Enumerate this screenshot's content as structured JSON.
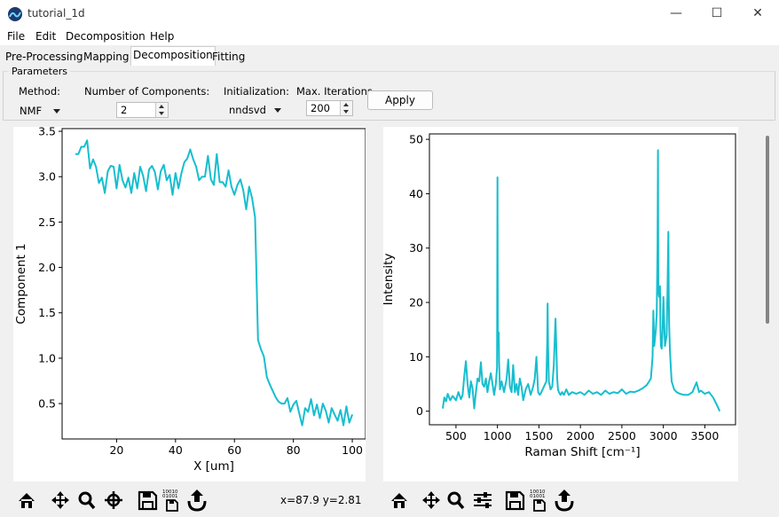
{
  "window": {
    "title": "tutorial_1d",
    "minimize_glyph": "—",
    "maximize_glyph": "☐",
    "close_glyph": "✕"
  },
  "menu": [
    "File",
    "Edit",
    "Decomposition",
    "Help"
  ],
  "tabs": [
    "Pre-Processing",
    "Mapping",
    "Decomposition",
    "Fitting"
  ],
  "active_tab": "Decomposition",
  "parameters": {
    "legend": "Parameters",
    "method_label": "Method:",
    "method_value": "NMF",
    "components_label": "Number of Components:",
    "components_value": "2",
    "init_label": "Initialization:",
    "init_value": "nndsvd",
    "iter_label": "Max. Iterations",
    "iter_value": "200",
    "apply_label": "Apply"
  },
  "colors": {
    "series": "#17becf"
  },
  "status": {
    "coords": "x=87.9 y=2.81"
  },
  "left_toolbar_icons": [
    "home-icon",
    "pan-icon",
    "zoom-icon",
    "crosshair-icon",
    "save-icon",
    "save-data-icon",
    "export-icon"
  ],
  "right_toolbar_icons": [
    "home-icon",
    "pan-icon",
    "zoom-icon",
    "sliders-icon",
    "save-icon",
    "save-data-icon",
    "export-icon"
  ],
  "chart_data": [
    {
      "type": "line",
      "xlabel": "X [um]",
      "ylabel": "Component 1",
      "xlim": [
        1.5,
        104.5
      ],
      "ylim": [
        0.11,
        3.53
      ],
      "xticks": [
        20,
        40,
        60,
        80,
        100
      ],
      "yticks": [
        0.5,
        1.0,
        1.5,
        2.0,
        2.5,
        3.0,
        3.5
      ],
      "ytick_labels": [
        "0.5",
        "1.0",
        "1.5",
        "2.0",
        "2.5",
        "3.0",
        "3.5"
      ],
      "series": [
        {
          "x": [
            6,
            7,
            8,
            9,
            10,
            11,
            12,
            13,
            14,
            15,
            16,
            17,
            18,
            19,
            20,
            21,
            22,
            23,
            24,
            25,
            26,
            27,
            28,
            29,
            30,
            31,
            32,
            33,
            34,
            35,
            36,
            37,
            38,
            39,
            40,
            41,
            42,
            43,
            44,
            45,
            46,
            47,
            48,
            49,
            50,
            51,
            52,
            53,
            54,
            55,
            56,
            57,
            58,
            59,
            60,
            61,
            62,
            63,
            64,
            65,
            66,
            67,
            68,
            69,
            70,
            71,
            72,
            73,
            74,
            75,
            76,
            77,
            78,
            79,
            80,
            81,
            82,
            83,
            84,
            85,
            86,
            87,
            88,
            89,
            90,
            91,
            92,
            93,
            94,
            95,
            96,
            97,
            98,
            99,
            100
          ],
          "y": [
            3.25,
            3.25,
            3.33,
            3.33,
            3.4,
            3.09,
            3.19,
            3.11,
            2.93,
            2.99,
            2.82,
            3.06,
            3.12,
            3.11,
            2.87,
            3.13,
            2.96,
            2.88,
            2.99,
            2.82,
            3.04,
            2.87,
            3.11,
            3.01,
            2.84,
            3.08,
            3.12,
            3.05,
            2.86,
            3.06,
            3.13,
            2.96,
            3.02,
            2.8,
            3.04,
            2.87,
            3.04,
            3.16,
            3.2,
            3.3,
            3.19,
            3.11,
            2.96,
            3.0,
            3.0,
            3.23,
            2.97,
            2.91,
            3.25,
            2.94,
            2.94,
            2.89,
            3.07,
            2.89,
            2.8,
            2.91,
            2.97,
            2.85,
            2.64,
            2.89,
            2.76,
            2.55,
            1.2,
            1.1,
            1.02,
            0.79,
            0.71,
            0.64,
            0.57,
            0.52,
            0.5,
            0.5,
            0.56,
            0.41,
            0.49,
            0.53,
            0.39,
            0.26,
            0.45,
            0.41,
            0.55,
            0.37,
            0.49,
            0.34,
            0.5,
            0.42,
            0.29,
            0.45,
            0.38,
            0.31,
            0.43,
            0.26,
            0.47,
            0.29,
            0.38
          ]
        }
      ]
    },
    {
      "type": "line",
      "xlabel": "Raman Shift [cm⁻¹]",
      "ylabel": "Intensity",
      "xlim": [
        180,
        3870
      ],
      "ylim": [
        -2.5,
        51
      ],
      "xticks": [
        500,
        1000,
        1500,
        2000,
        2500,
        3000,
        3500
      ],
      "yticks": [
        0,
        10,
        20,
        30,
        40,
        50
      ],
      "series": [
        {
          "x": [
            340,
            360,
            380,
            400,
            430,
            460,
            500,
            530,
            560,
            580,
            600,
            620,
            640,
            660,
            680,
            700,
            720,
            740,
            760,
            780,
            800,
            820,
            840,
            860,
            880,
            900,
            920,
            940,
            960,
            980,
            995,
            1000,
            1005,
            1010,
            1015,
            1020,
            1030,
            1050,
            1080,
            1110,
            1130,
            1150,
            1170,
            1190,
            1210,
            1230,
            1250,
            1270,
            1290,
            1310,
            1340,
            1370,
            1400,
            1430,
            1450,
            1470,
            1490,
            1510,
            1530,
            1560,
            1590,
            1600,
            1605,
            1610,
            1620,
            1640,
            1660,
            1680,
            1700,
            1720,
            1730,
            1740,
            1760,
            1780,
            1800,
            1830,
            1860,
            1900,
            1950,
            2000,
            2050,
            2100,
            2150,
            2200,
            2250,
            2300,
            2350,
            2400,
            2450,
            2500,
            2550,
            2600,
            2650,
            2700,
            2750,
            2800,
            2850,
            2870,
            2880,
            2890,
            2900,
            2910,
            2920,
            2930,
            2935,
            2940,
            2950,
            2960,
            2965,
            2970,
            2980,
            2990,
            3000,
            3020,
            3040,
            3050,
            3060,
            3065,
            3070,
            3080,
            3090,
            3100,
            3130,
            3160,
            3200,
            3250,
            3300,
            3350,
            3400,
            3430,
            3450,
            3500,
            3550,
            3600,
            3650,
            3680
          ],
          "y": [
            0.5,
            2.5,
            1.8,
            3.2,
            2.0,
            2.8,
            2.0,
            3.5,
            2.2,
            3.0,
            6.5,
            9.2,
            5.0,
            2.5,
            5.5,
            4.2,
            0.5,
            3.5,
            6.0,
            5.5,
            9.0,
            5.0,
            4.5,
            6.0,
            3.5,
            5.5,
            7.0,
            5.0,
            3.0,
            5.0,
            8.0,
            43.0,
            14.0,
            12.5,
            14.5,
            9.0,
            4.0,
            5.5,
            3.5,
            6.0,
            9.5,
            4.5,
            3.5,
            8.5,
            3.5,
            5.0,
            3.0,
            6.0,
            4.5,
            2.0,
            4.0,
            5.0,
            3.0,
            4.5,
            6.0,
            10.0,
            3.5,
            3.0,
            3.5,
            4.5,
            5.5,
            13.0,
            19.8,
            12.0,
            5.5,
            4.0,
            4.5,
            8.5,
            17.0,
            6.0,
            4.0,
            3.5,
            3.0,
            3.5,
            3.0,
            4.0,
            3.0,
            3.5,
            3.2,
            3.5,
            3.0,
            3.8,
            3.2,
            3.5,
            3.0,
            3.8,
            3.2,
            3.5,
            3.3,
            4.0,
            3.2,
            3.6,
            3.5,
            3.8,
            4.2,
            4.8,
            6.0,
            10.0,
            18.5,
            12.0,
            13.5,
            15.0,
            18.0,
            30.0,
            48.0,
            22.0,
            21.0,
            23.0,
            15.0,
            12.0,
            11.5,
            14.5,
            21.0,
            12.0,
            14.0,
            22.0,
            33.0,
            22.0,
            16.0,
            11.0,
            8.0,
            5.5,
            4.0,
            3.5,
            3.2,
            3.0,
            3.0,
            3.5,
            5.3,
            3.5,
            3.8,
            3.2,
            3.5,
            2.5,
            1.0,
            0.0
          ]
        }
      ]
    }
  ]
}
